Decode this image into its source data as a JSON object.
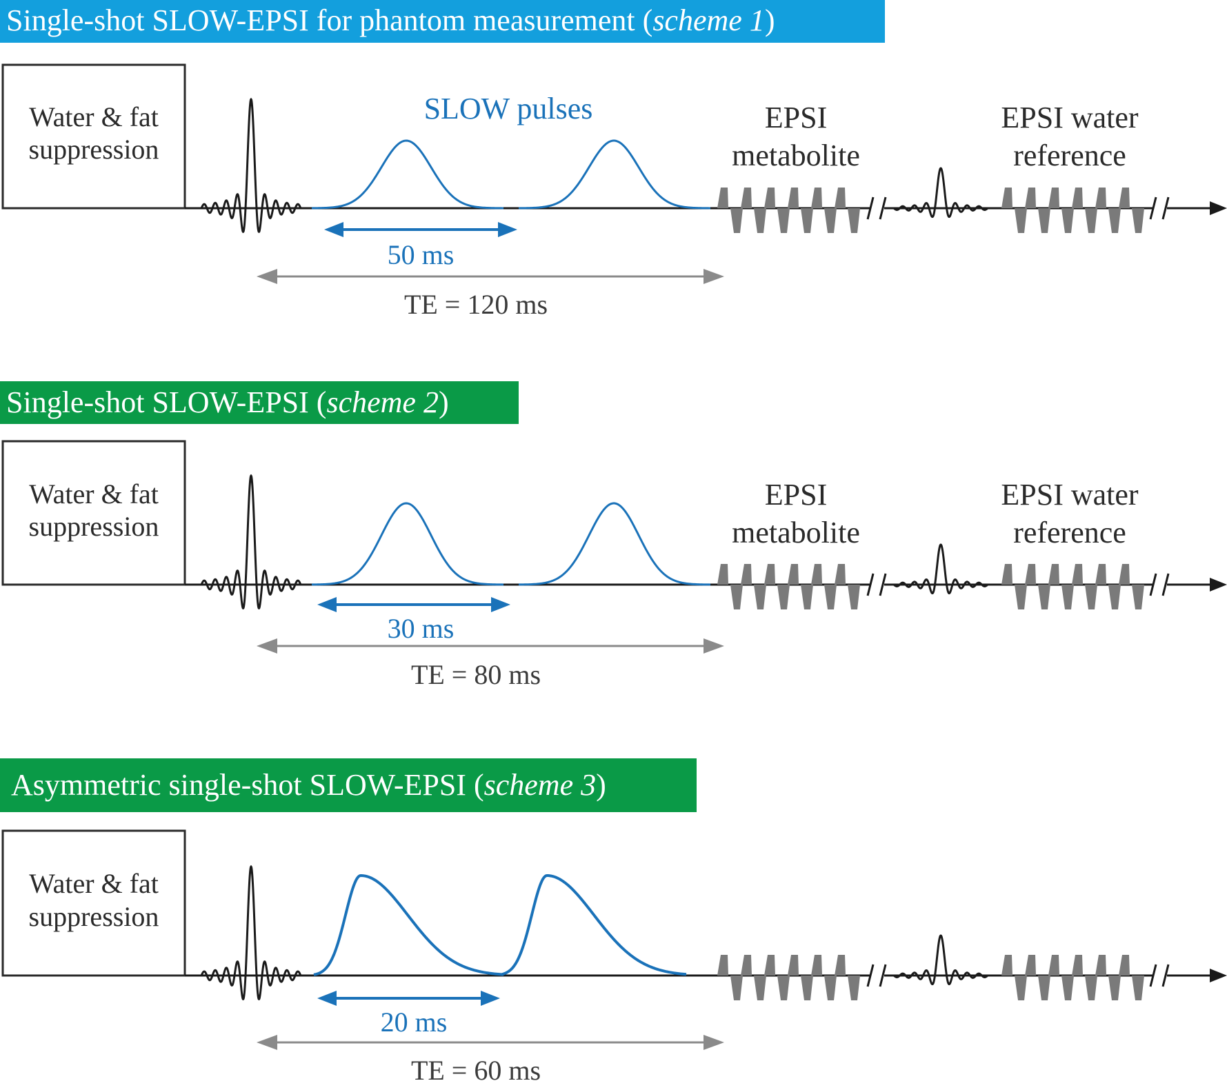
{
  "colors": {
    "blue_banner": "#139fdd",
    "green_banner": "#0a9a47",
    "slow_pulse": "#1a72b9",
    "te_arrow": "#8a8a8a",
    "gradient": "#7a7a7a",
    "axis": "#1a1a1a"
  },
  "schemes": [
    {
      "banner": {
        "prefix": "Single-shot SLOW-EPSI for phantom measurement (",
        "italic": "scheme 1",
        "suffix": ")"
      },
      "suppression_box": {
        "line1": "Water & fat",
        "line2": "suppression"
      },
      "slow_label": "SLOW pulses",
      "epsi_metabolite": {
        "line1": "EPSI",
        "line2": "metabolite"
      },
      "epsi_water": {
        "line1": "EPSI water",
        "line2": "reference"
      },
      "slow_interval": "50 ms",
      "te": "TE = 120 ms",
      "pulse_shape": "symmetric"
    },
    {
      "banner": {
        "prefix": "Single-shot SLOW-EPSI (",
        "italic": "scheme 2",
        "suffix": ")"
      },
      "suppression_box": {
        "line1": "Water & fat",
        "line2": "suppression"
      },
      "slow_label": "",
      "epsi_metabolite": {
        "line1": "EPSI",
        "line2": "metabolite"
      },
      "epsi_water": {
        "line1": "EPSI water",
        "line2": "reference"
      },
      "slow_interval": "30 ms",
      "te": "TE = 80 ms",
      "pulse_shape": "symmetric"
    },
    {
      "banner": {
        "prefix": "Asymmetric single-shot SLOW-EPSI (",
        "italic": "scheme 3",
        "suffix": ")"
      },
      "suppression_box": {
        "line1": "Water & fat",
        "line2": "suppression"
      },
      "slow_label": "",
      "epsi_metabolite": {
        "line1": "",
        "line2": ""
      },
      "epsi_water": {
        "line1": "",
        "line2": ""
      },
      "slow_interval": "20 ms",
      "te": "TE = 60 ms",
      "pulse_shape": "asymmetric"
    }
  ]
}
